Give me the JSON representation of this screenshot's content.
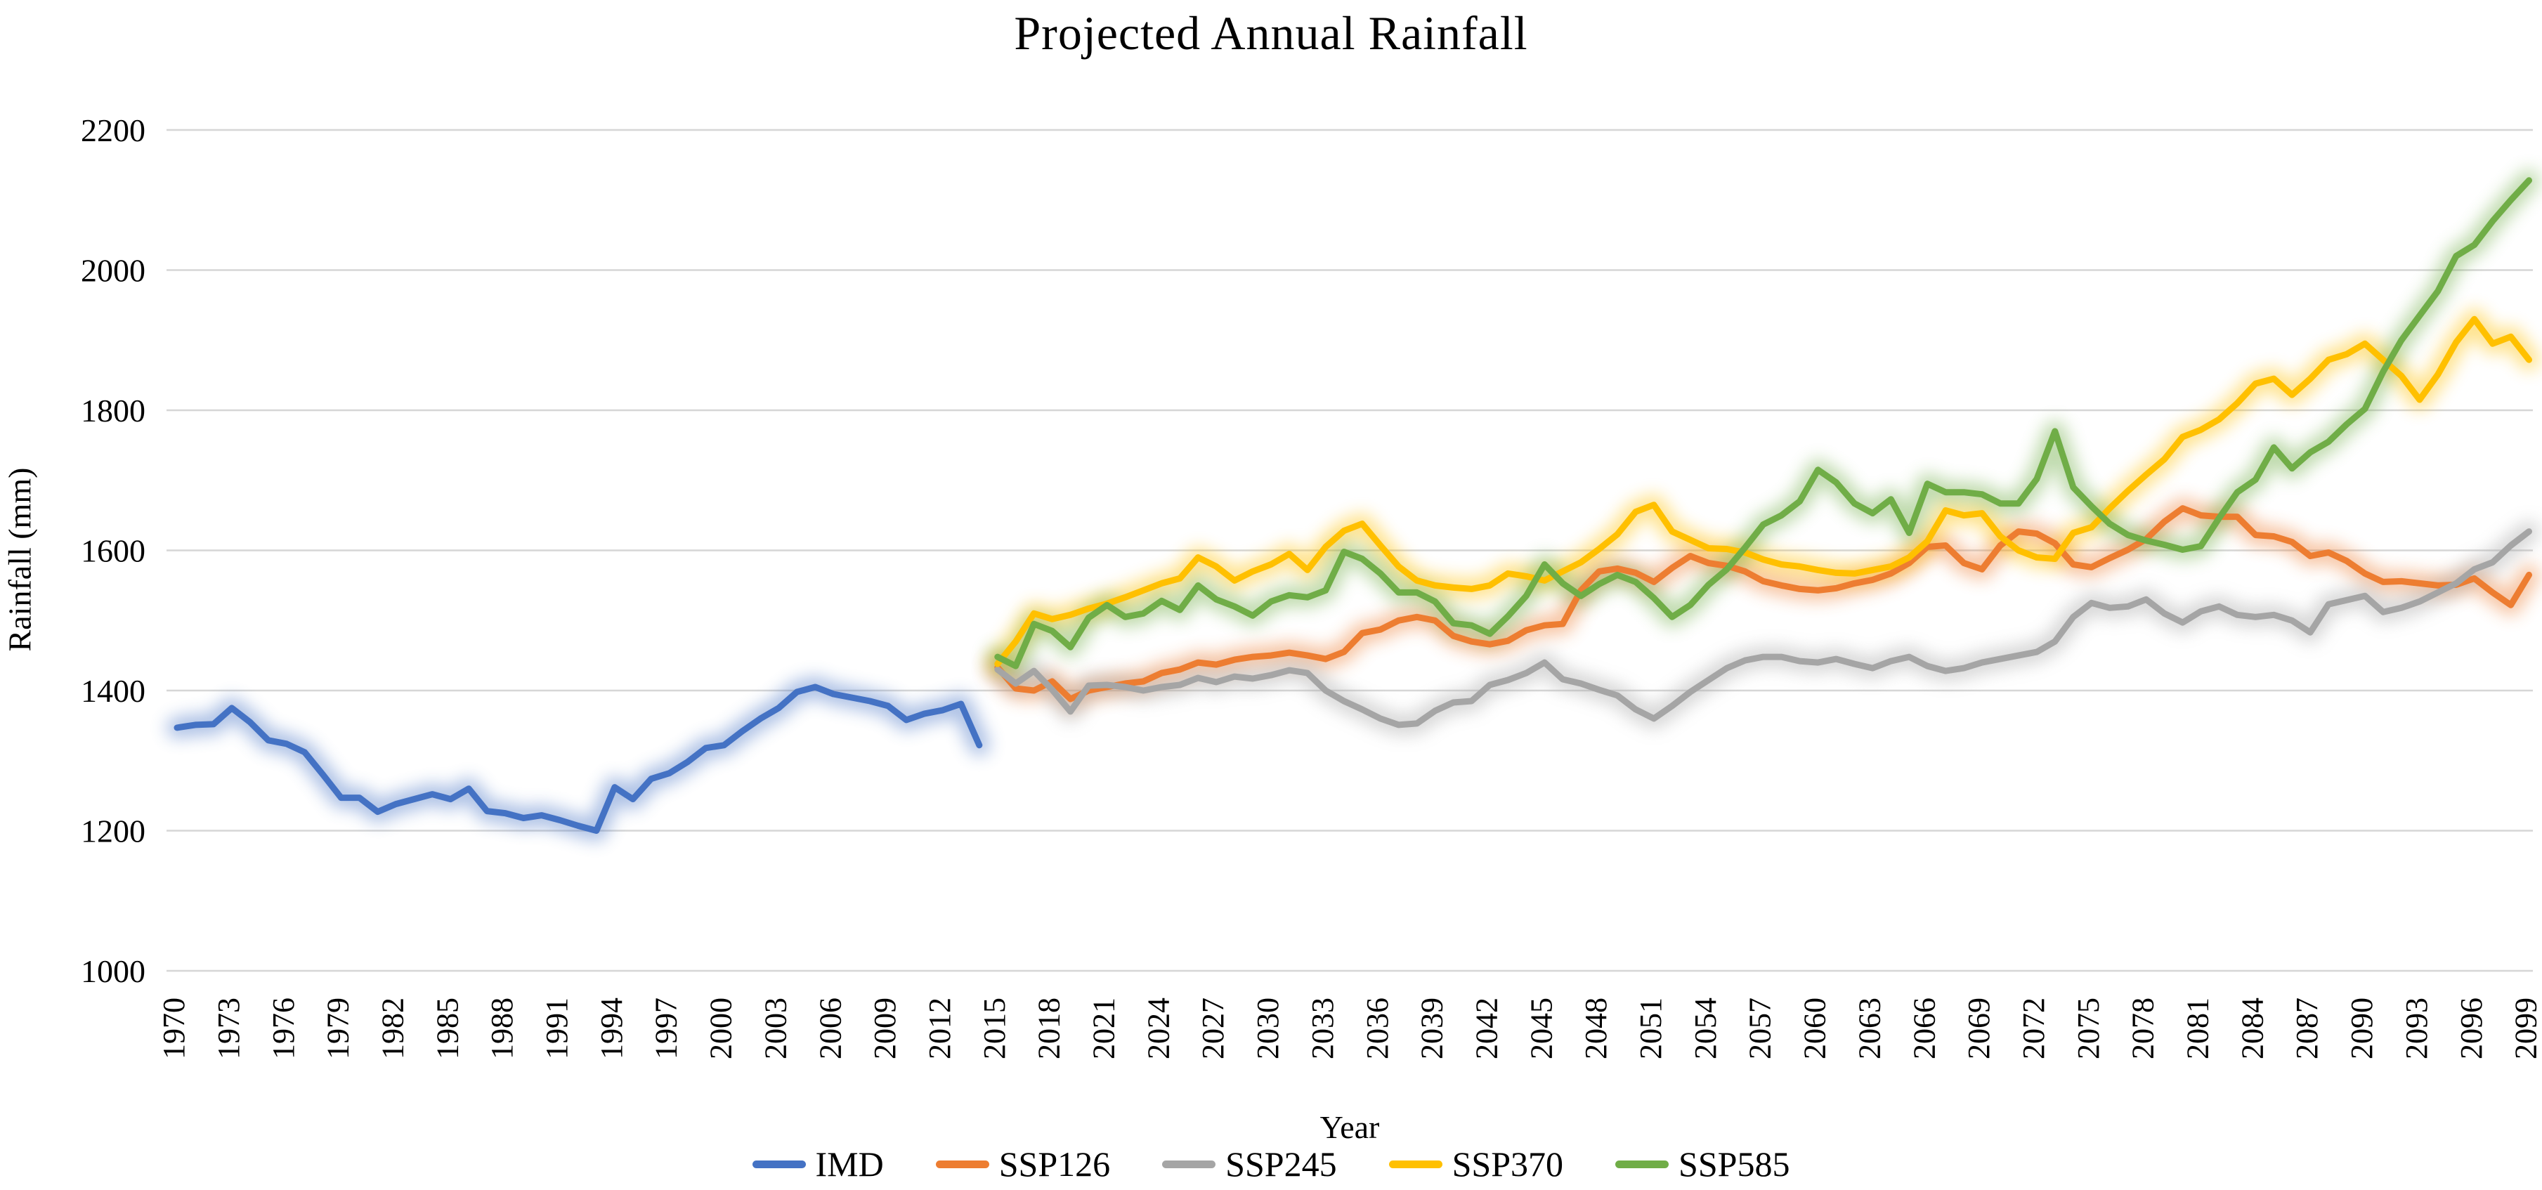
{
  "title": "Projected Annual Rainfall",
  "axes": {
    "x_label": "Year",
    "y_label": "Rainfall (mm)",
    "y_min": 1000,
    "y_max": 2200,
    "y_ticks": [
      1000,
      1200,
      1400,
      1600,
      1800,
      2000,
      2200
    ],
    "x_tick_years": [
      1970,
      1973,
      1976,
      1979,
      1982,
      1985,
      1988,
      1991,
      1994,
      1997,
      2000,
      2003,
      2006,
      2009,
      2012,
      2015,
      2018,
      2021,
      2024,
      2027,
      2030,
      2033,
      2036,
      2039,
      2042,
      2045,
      2048,
      2051,
      2054,
      2057,
      2060,
      2063,
      2066,
      2069,
      2072,
      2075,
      2078,
      2081,
      2084,
      2087,
      2090,
      2093,
      2096,
      2099
    ]
  },
  "colors": {
    "gridline": "#D6D6D6",
    "imd": "#4472C4",
    "ssp126": "#ED7D31",
    "ssp245": "#A5A5A5",
    "ssp370": "#FFC000",
    "ssp585": "#70AD47"
  },
  "legend": [
    {
      "label": "IMD",
      "color": "#4472C4"
    },
    {
      "label": "SSP126",
      "color": "#ED7D31"
    },
    {
      "label": "SSP245",
      "color": "#A5A5A5"
    },
    {
      "label": "SSP370",
      "color": "#FFC000"
    },
    {
      "label": "SSP585",
      "color": "#70AD47"
    }
  ],
  "chart_data": {
    "type": "line",
    "title": "Projected Annual Rainfall",
    "xlabel": "Year",
    "ylabel": "Rainfall (mm)",
    "xlim": [
      1970,
      2099
    ],
    "ylim": [
      1000,
      2200
    ],
    "grid": "horizontal",
    "legend_position": "bottom",
    "series": [
      {
        "name": "IMD",
        "color": "#4472C4",
        "start_year": 1970,
        "values": [
          1347,
          1351,
          1352,
          1375,
          1355,
          1329,
          1324,
          1312,
          1280,
          1247,
          1247,
          1227,
          1238,
          1245,
          1252,
          1245,
          1260,
          1228,
          1225,
          1218,
          1222,
          1215,
          1207,
          1200,
          1262,
          1245,
          1274,
          1282,
          1298,
          1318,
          1322,
          1342,
          1360,
          1375,
          1398,
          1405,
          1395,
          1390,
          1385,
          1378,
          1358,
          1367,
          1372,
          1381,
          1322
        ]
      },
      {
        "name": "SSP126",
        "color": "#ED7D31",
        "start_year": 2015,
        "values": [
          1433,
          1403,
          1400,
          1413,
          1388,
          1400,
          1405,
          1410,
          1413,
          1425,
          1430,
          1440,
          1437,
          1444,
          1448,
          1450,
          1454,
          1450,
          1445,
          1455,
          1482,
          1487,
          1500,
          1505,
          1500,
          1478,
          1470,
          1466,
          1471,
          1486,
          1493,
          1495,
          1543,
          1570,
          1574,
          1568,
          1555,
          1575,
          1592,
          1582,
          1578,
          1570,
          1556,
          1550,
          1545,
          1543,
          1546,
          1553,
          1558,
          1567,
          1582,
          1605,
          1607,
          1582,
          1573,
          1607,
          1627,
          1624,
          1610,
          1580,
          1576,
          1589,
          1601,
          1616,
          1641,
          1660,
          1650,
          1648,
          1648,
          1622,
          1620,
          1612,
          1592,
          1597,
          1585,
          1567,
          1555,
          1556,
          1553,
          1550,
          1551,
          1560,
          1540,
          1522,
          1565
        ]
      },
      {
        "name": "SSP245",
        "color": "#A5A5A5",
        "start_year": 2015,
        "values": [
          1430,
          1410,
          1428,
          1401,
          1370,
          1407,
          1408,
          1405,
          1400,
          1405,
          1408,
          1418,
          1412,
          1420,
          1417,
          1422,
          1429,
          1425,
          1400,
          1385,
          1373,
          1360,
          1351,
          1353,
          1371,
          1383,
          1385,
          1408,
          1415,
          1425,
          1440,
          1416,
          1410,
          1401,
          1393,
          1373,
          1360,
          1378,
          1398,
          1415,
          1432,
          1443,
          1448,
          1448,
          1442,
          1440,
          1445,
          1438,
          1432,
          1442,
          1448,
          1435,
          1428,
          1432,
          1440,
          1445,
          1450,
          1455,
          1470,
          1505,
          1525,
          1518,
          1520,
          1530,
          1510,
          1497,
          1513,
          1520,
          1508,
          1505,
          1508,
          1500,
          1483,
          1523,
          1529,
          1535,
          1512,
          1518,
          1527,
          1540,
          1553,
          1573,
          1583,
          1607,
          1627
        ]
      },
      {
        "name": "SSP370",
        "color": "#FFC000",
        "start_year": 2015,
        "values": [
          1438,
          1470,
          1510,
          1502,
          1508,
          1517,
          1524,
          1533,
          1543,
          1553,
          1560,
          1590,
          1577,
          1557,
          1570,
          1580,
          1595,
          1572,
          1605,
          1628,
          1638,
          1607,
          1577,
          1557,
          1550,
          1547,
          1545,
          1550,
          1567,
          1563,
          1557,
          1570,
          1583,
          1602,
          1623,
          1655,
          1665,
          1627,
          1615,
          1603,
          1602,
          1597,
          1587,
          1580,
          1577,
          1572,
          1568,
          1567,
          1572,
          1577,
          1590,
          1613,
          1657,
          1650,
          1653,
          1620,
          1600,
          1590,
          1588,
          1625,
          1633,
          1660,
          1685,
          1708,
          1730,
          1762,
          1772,
          1787,
          1810,
          1838,
          1845,
          1822,
          1845,
          1872,
          1880,
          1895,
          1872,
          1849,
          1815,
          1851,
          1897,
          1930,
          1895,
          1905,
          1872
        ]
      },
      {
        "name": "SSP585",
        "color": "#70AD47",
        "start_year": 2015,
        "values": [
          1448,
          1435,
          1495,
          1485,
          1462,
          1504,
          1522,
          1505,
          1510,
          1528,
          1515,
          1550,
          1530,
          1520,
          1507,
          1527,
          1536,
          1533,
          1543,
          1598,
          1588,
          1567,
          1540,
          1540,
          1527,
          1496,
          1493,
          1481,
          1506,
          1535,
          1580,
          1553,
          1535,
          1552,
          1565,
          1555,
          1532,
          1505,
          1522,
          1551,
          1573,
          1604,
          1637,
          1650,
          1670,
          1715,
          1697,
          1667,
          1653,
          1673,
          1625,
          1695,
          1683,
          1683,
          1680,
          1667,
          1667,
          1702,
          1770,
          1690,
          1663,
          1638,
          1622,
          1614,
          1608,
          1601,
          1606,
          1646,
          1683,
          1701,
          1747,
          1717,
          1740,
          1755,
          1780,
          1802,
          1855,
          1900,
          1935,
          1970,
          2020,
          2036,
          2070,
          2100,
          2128
        ]
      }
    ]
  }
}
